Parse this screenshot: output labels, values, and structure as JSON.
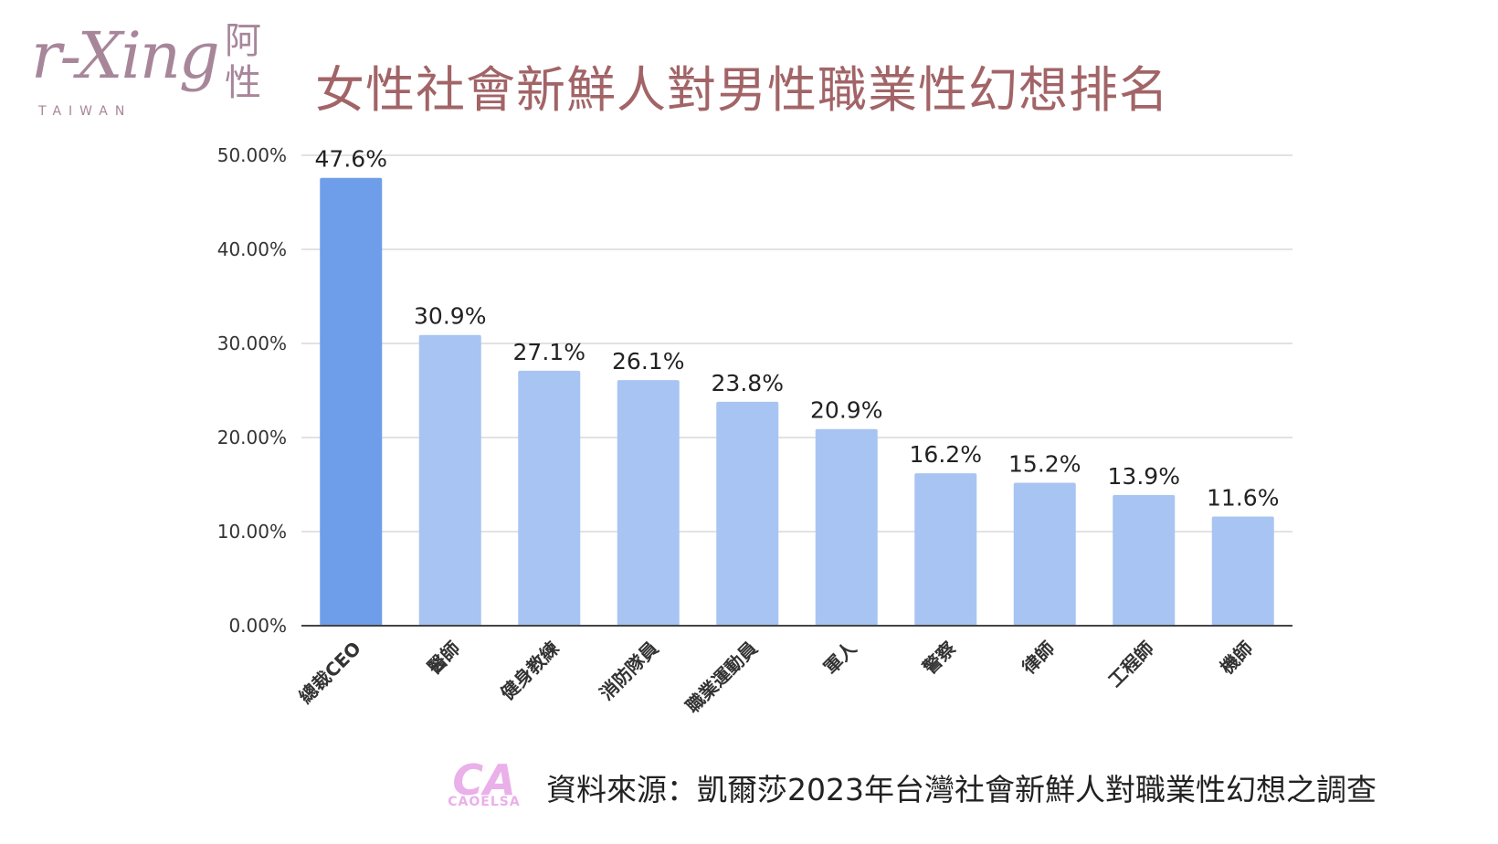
{
  "logo": {
    "script": "r-Xing",
    "chinese": "阿性",
    "subtitle": "TAIWAN"
  },
  "title": "女性社會新鮮人對男性職業性幻想排名",
  "source": {
    "logo_text": "CA",
    "logo_word": "CAOELSA",
    "text": "資料來源：凱爾莎2023年台灣社會新鮮人對職業性幻想之調查"
  },
  "colors": {
    "title": "#a26467",
    "logo": "#a7869a",
    "highlight_bar": "#6e9eea",
    "bar": "#a8c4f2",
    "grid": "#d9d9d9",
    "axis": "#444444",
    "source_logo": "#eab0ea"
  },
  "chart_data": {
    "type": "bar",
    "categories": [
      "總裁CEO",
      "醫師",
      "健身教練",
      "消防隊員",
      "職業運動員",
      "軍人",
      "警察",
      "律師",
      "工程師",
      "機師"
    ],
    "values": [
      47.6,
      30.9,
      27.1,
      26.1,
      23.8,
      20.9,
      16.2,
      15.2,
      13.9,
      11.6
    ],
    "data_labels": [
      "47.6%",
      "30.9%",
      "27.1%",
      "26.1%",
      "23.8%",
      "20.9%",
      "16.2%",
      "15.2%",
      "13.9%",
      "11.6%"
    ],
    "y_ticks": [
      0,
      10,
      20,
      30,
      40,
      50
    ],
    "y_tick_labels": [
      "0.00%",
      "10.00%",
      "20.00%",
      "30.00%",
      "40.00%",
      "50.00%"
    ],
    "ylim": [
      0,
      50
    ],
    "grid": true,
    "highlight_index": 0
  }
}
